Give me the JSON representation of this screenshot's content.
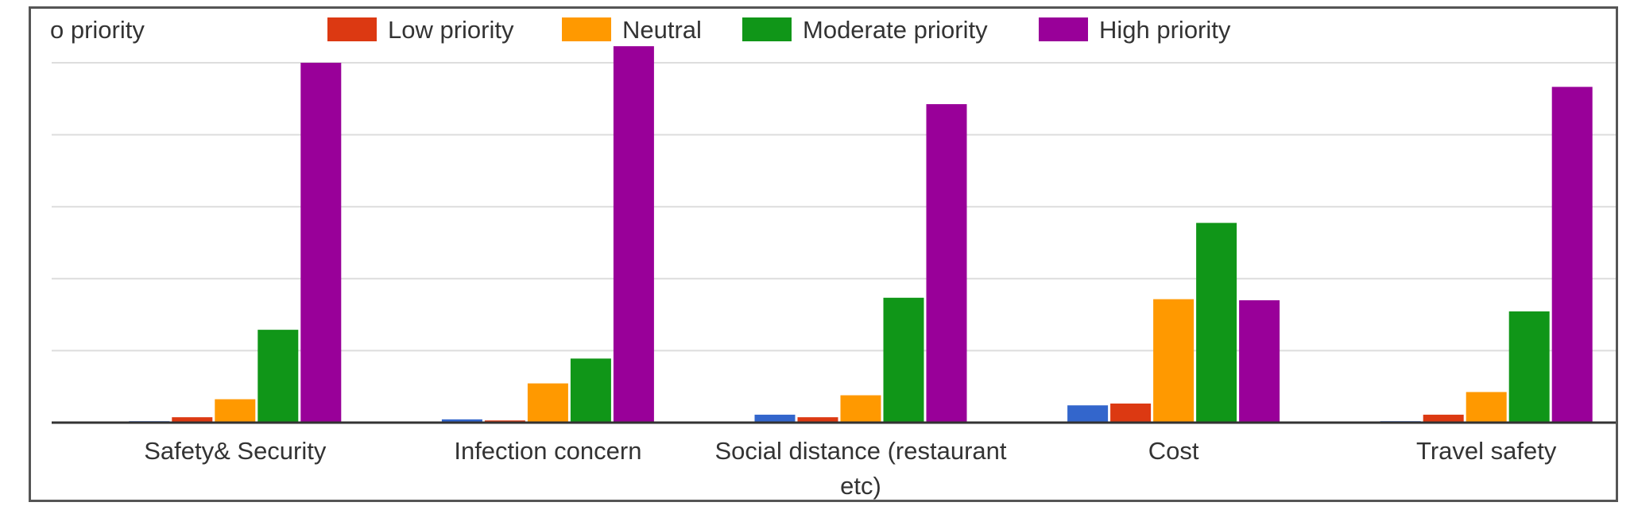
{
  "chart_data": {
    "type": "bar",
    "legend_placement": "top",
    "grid": true,
    "title": "",
    "xlabel": "",
    "ylabel": "",
    "ylim": [
      0,
      100
    ],
    "categories": [
      [
        "Safety& Security"
      ],
      [
        "Infection concern"
      ],
      [
        "Social distance (restaurant",
        "etc)"
      ],
      [
        "Cost"
      ],
      [
        "Travel safety"
      ]
    ],
    "series": [
      {
        "name": "o priority",
        "color": "#3366cc",
        "values": [
          0.4,
          0.9,
          2.2,
          4.8,
          0.4
        ]
      },
      {
        "name": "Low priority",
        "color": "#dc3912",
        "values": [
          1.5,
          0.6,
          1.5,
          5.3,
          2.2
        ]
      },
      {
        "name": "Neutral",
        "color": "#ff9900",
        "values": [
          6.5,
          10.9,
          7.6,
          34.3,
          8.5
        ]
      },
      {
        "name": "Moderate priority",
        "color": "#109618",
        "values": [
          25.8,
          17.8,
          34.7,
          55.5,
          30.9
        ]
      },
      {
        "name": "High priority",
        "color": "#990099",
        "values": [
          100.0,
          104.6,
          88.5,
          34.0,
          93.3
        ]
      }
    ]
  }
}
